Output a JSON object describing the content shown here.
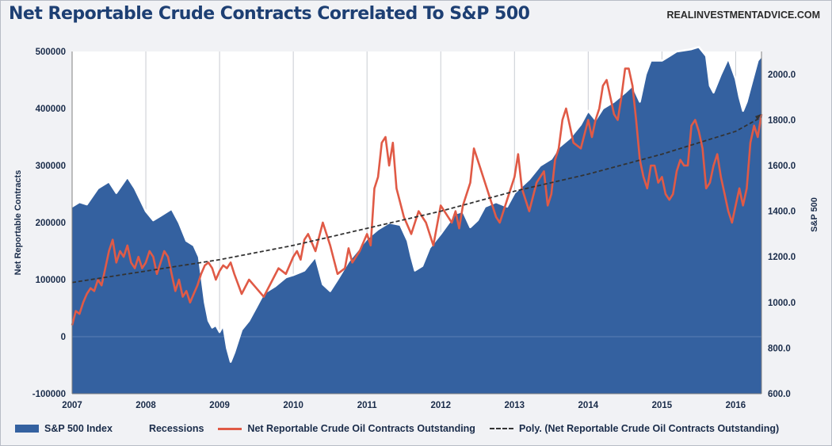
{
  "header": {
    "title": "Net Reportable Crude Contracts Correlated To S&P 500",
    "source": "REALINVESTMENTADVICE.COM"
  },
  "colors": {
    "sp500_fill": "#3461a0",
    "sp500_outline": "#ffffff",
    "crude_line": "#e05a46",
    "trend_line": "#333333",
    "plot_background": "#ffffff"
  },
  "chart_data": {
    "type": "area",
    "x_axis": {
      "ticks": [
        "2007",
        "2008",
        "2009",
        "2010",
        "2011",
        "2012",
        "2013",
        "2014",
        "2015",
        "2016"
      ],
      "range": [
        2007.0,
        2016.35
      ]
    },
    "y_left": {
      "label": "Net Reportable Contracts",
      "range": [
        -100000,
        500000
      ],
      "ticks": [
        "-100000",
        "0",
        "100000",
        "200000",
        "300000",
        "400000",
        "500000"
      ],
      "tick_values": [
        -100000,
        0,
        100000,
        200000,
        300000,
        400000,
        500000
      ]
    },
    "y_right": {
      "label": "S&P 500",
      "range": [
        600,
        2100
      ],
      "ticks": [
        "600.0",
        "800.0",
        "1000.0",
        "1200.0",
        "1400.0",
        "1600.0",
        "1800.0",
        "2000.0"
      ],
      "tick_values": [
        600,
        800,
        1000,
        1200,
        1400,
        1600,
        1800,
        2000
      ]
    },
    "grid": "vertical",
    "legend_position": "bottom",
    "legend": [
      "S&P 500 Index",
      "Recessions",
      "Net Reportable Crude Oil Contracts Outstanding",
      "Poly. (Net Reportable Crude Oil Contracts Outstanding)"
    ],
    "series": [
      {
        "name": "S&P 500 Index",
        "axis": "right",
        "kind": "area",
        "x": [
          2007.0,
          2007.1,
          2007.2,
          2007.35,
          2007.5,
          2007.6,
          2007.75,
          2007.85,
          2008.0,
          2008.1,
          2008.2,
          2008.35,
          2008.45,
          2008.55,
          2008.65,
          2008.72,
          2008.8,
          2008.85,
          2008.9,
          2008.95,
          2009.0,
          2009.05,
          2009.1,
          2009.15,
          2009.2,
          2009.3,
          2009.4,
          2009.5,
          2009.6,
          2009.75,
          2009.9,
          2010.0,
          2010.15,
          2010.3,
          2010.4,
          2010.5,
          2010.6,
          2010.75,
          2010.9,
          2011.0,
          2011.15,
          2011.3,
          2011.45,
          2011.55,
          2011.6,
          2011.65,
          2011.75,
          2011.85,
          2012.0,
          2012.2,
          2012.3,
          2012.4,
          2012.5,
          2012.6,
          2012.75,
          2012.9,
          2013.0,
          2013.2,
          2013.35,
          2013.5,
          2013.6,
          2013.75,
          2013.9,
          2014.0,
          2014.1,
          2014.2,
          2014.35,
          2014.5,
          2014.6,
          2014.7,
          2014.78,
          2014.85,
          2015.0,
          2015.1,
          2015.2,
          2015.4,
          2015.5,
          2015.6,
          2015.65,
          2015.7,
          2015.8,
          2015.9,
          2016.0,
          2016.05,
          2016.1,
          2016.15,
          2016.2,
          2016.3,
          2016.35
        ],
        "values": [
          1420,
          1440,
          1430,
          1500,
          1530,
          1480,
          1550,
          1500,
          1400,
          1360,
          1380,
          1410,
          1350,
          1270,
          1250,
          1200,
          1000,
          920,
          890,
          900,
          870,
          900,
          800,
          740,
          780,
          880,
          920,
          980,
          1040,
          1070,
          1110,
          1120,
          1140,
          1200,
          1080,
          1050,
          1100,
          1180,
          1240,
          1280,
          1320,
          1350,
          1340,
          1270,
          1200,
          1140,
          1160,
          1240,
          1300,
          1390,
          1400,
          1330,
          1360,
          1420,
          1440,
          1420,
          1480,
          1540,
          1600,
          1630,
          1680,
          1720,
          1780,
          1840,
          1800,
          1850,
          1880,
          1920,
          1950,
          1880,
          2000,
          2060,
          2060,
          2080,
          2100,
          2110,
          2120,
          2080,
          1950,
          1920,
          2000,
          2070,
          1980,
          1900,
          1840,
          1880,
          1940,
          2060,
          2080
        ]
      },
      {
        "name": "Net Reportable Crude Oil Contracts Outstanding",
        "axis": "left",
        "kind": "line",
        "x": [
          2007.0,
          2007.05,
          2007.1,
          2007.15,
          2007.2,
          2007.25,
          2007.3,
          2007.35,
          2007.4,
          2007.45,
          2007.5,
          2007.55,
          2007.6,
          2007.65,
          2007.7,
          2007.75,
          2007.8,
          2007.85,
          2007.9,
          2007.95,
          2008.0,
          2008.05,
          2008.1,
          2008.15,
          2008.2,
          2008.25,
          2008.3,
          2008.35,
          2008.4,
          2008.45,
          2008.5,
          2008.55,
          2008.6,
          2008.65,
          2008.7,
          2008.75,
          2008.8,
          2008.85,
          2008.9,
          2008.95,
          2009.0,
          2009.05,
          2009.1,
          2009.15,
          2009.2,
          2009.3,
          2009.4,
          2009.5,
          2009.6,
          2009.7,
          2009.8,
          2009.9,
          2010.0,
          2010.05,
          2010.1,
          2010.15,
          2010.2,
          2010.3,
          2010.4,
          2010.5,
          2010.6,
          2010.7,
          2010.75,
          2010.8,
          2010.9,
          2011.0,
          2011.05,
          2011.1,
          2011.15,
          2011.2,
          2011.25,
          2011.3,
          2011.35,
          2011.4,
          2011.5,
          2011.6,
          2011.7,
          2011.8,
          2011.9,
          2012.0,
          2012.1,
          2012.15,
          2012.2,
          2012.25,
          2012.3,
          2012.4,
          2012.45,
          2012.5,
          2012.6,
          2012.7,
          2012.75,
          2012.8,
          2012.9,
          2013.0,
          2013.05,
          2013.1,
          2013.2,
          2013.3,
          2013.4,
          2013.45,
          2013.5,
          2013.55,
          2013.6,
          2013.65,
          2013.7,
          2013.75,
          2013.8,
          2013.9,
          2014.0,
          2014.05,
          2014.1,
          2014.15,
          2014.2,
          2014.25,
          2014.3,
          2014.35,
          2014.4,
          2014.45,
          2014.5,
          2014.55,
          2014.6,
          2014.65,
          2014.7,
          2014.75,
          2014.8,
          2014.85,
          2014.9,
          2014.95,
          2015.0,
          2015.05,
          2015.1,
          2015.15,
          2015.2,
          2015.25,
          2015.3,
          2015.35,
          2015.4,
          2015.45,
          2015.5,
          2015.55,
          2015.6,
          2015.65,
          2015.7,
          2015.75,
          2015.8,
          2015.85,
          2015.9,
          2015.95,
          2016.0,
          2016.05,
          2016.1,
          2016.15,
          2016.2,
          2016.25,
          2016.3,
          2016.35
        ],
        "values": [
          20000,
          45000,
          40000,
          60000,
          75000,
          85000,
          80000,
          100000,
          90000,
          120000,
          150000,
          170000,
          130000,
          150000,
          140000,
          160000,
          130000,
          120000,
          140000,
          120000,
          130000,
          150000,
          140000,
          110000,
          130000,
          150000,
          140000,
          110000,
          80000,
          100000,
          70000,
          80000,
          60000,
          75000,
          90000,
          110000,
          125000,
          130000,
          120000,
          100000,
          115000,
          125000,
          120000,
          130000,
          110000,
          75000,
          100000,
          85000,
          70000,
          95000,
          120000,
          110000,
          140000,
          150000,
          135000,
          170000,
          180000,
          150000,
          200000,
          160000,
          110000,
          120000,
          155000,
          130000,
          150000,
          180000,
          160000,
          260000,
          280000,
          340000,
          350000,
          300000,
          340000,
          260000,
          210000,
          180000,
          220000,
          200000,
          160000,
          230000,
          210000,
          200000,
          220000,
          190000,
          230000,
          270000,
          330000,
          310000,
          270000,
          230000,
          210000,
          200000,
          240000,
          280000,
          320000,
          260000,
          220000,
          270000,
          290000,
          230000,
          250000,
          310000,
          330000,
          380000,
          400000,
          370000,
          340000,
          330000,
          380000,
          350000,
          380000,
          400000,
          440000,
          450000,
          420000,
          390000,
          380000,
          420000,
          470000,
          470000,
          440000,
          380000,
          310000,
          280000,
          260000,
          300000,
          300000,
          270000,
          280000,
          250000,
          240000,
          250000,
          290000,
          310000,
          300000,
          300000,
          370000,
          380000,
          360000,
          330000,
          260000,
          270000,
          300000,
          320000,
          280000,
          250000,
          220000,
          200000,
          230000,
          260000,
          230000,
          260000,
          340000,
          370000,
          350000,
          390000
        ]
      },
      {
        "name": "Poly. (Net Reportable Crude Oil Contracts Outstanding)",
        "axis": "left",
        "kind": "dashed",
        "x": [
          2007.0,
          2008.0,
          2009.0,
          2010.0,
          2011.0,
          2012.0,
          2013.0,
          2014.0,
          2015.0,
          2016.0,
          2016.35
        ],
        "values": [
          95000,
          115000,
          135000,
          160000,
          190000,
          220000,
          255000,
          285000,
          320000,
          360000,
          385000
        ]
      }
    ]
  }
}
